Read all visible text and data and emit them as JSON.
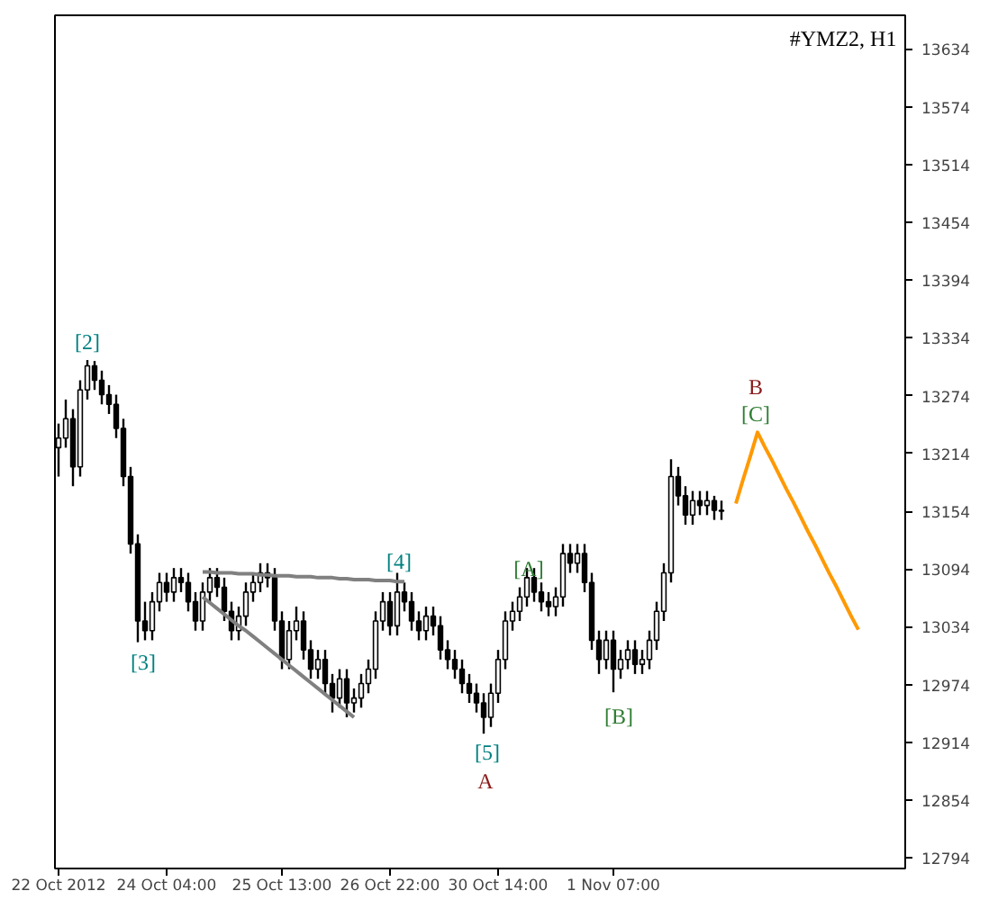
{
  "chart_data": {
    "type": "candlestick",
    "title": "#YMZ2, H1",
    "categories": [
      "22 Oct 2012",
      null,
      null,
      null,
      null,
      null,
      null,
      null,
      null,
      null,
      null,
      null,
      null,
      null,
      null,
      "24 Oct 04:00",
      null,
      null,
      null,
      null,
      null,
      null,
      null,
      null,
      null,
      null,
      null,
      null,
      null,
      null,
      null,
      "25 Oct 13:00",
      null,
      null,
      null,
      null,
      null,
      null,
      null,
      null,
      null,
      null,
      null,
      null,
      null,
      null,
      "26 Oct 22:00",
      null,
      null,
      null,
      null,
      null,
      null,
      null,
      null,
      null,
      null,
      null,
      null,
      null,
      null,
      "30 Oct 14:00",
      null,
      null,
      null,
      null,
      null,
      null,
      null,
      null,
      null,
      null,
      null,
      null,
      null,
      null,
      null,
      "1 Nov 07:00",
      null,
      null,
      null,
      null,
      null,
      null,
      null,
      null,
      null,
      null,
      null,
      null,
      null,
      null,
      null,
      null,
      null,
      null,
      null,
      null,
      null,
      null,
      null,
      null,
      null,
      null,
      null,
      null,
      null,
      null,
      null,
      null,
      null,
      null,
      null,
      null,
      null,
      null,
      null,
      null
    ],
    "ylim": [
      12783,
      13669
    ],
    "yticks": [
      12794,
      12854,
      12914,
      12974,
      13034,
      13094,
      13154,
      13214,
      13274,
      13334,
      13394,
      13454,
      13514,
      13574,
      13634
    ],
    "series": [
      {
        "color": "#000000",
        "ohlc": [
          [
            13220,
            13245,
            13190,
            13230
          ],
          [
            13230,
            13270,
            13220,
            13250
          ],
          [
            13250,
            13260,
            13180,
            13200
          ],
          [
            13200,
            13290,
            13190,
            13280
          ],
          [
            13280,
            13311,
            13270,
            13305
          ],
          [
            13305,
            13310,
            13280,
            13290
          ],
          [
            13290,
            13300,
            13265,
            13275
          ],
          [
            13275,
            13285,
            13255,
            13265
          ],
          [
            13265,
            13275,
            13230,
            13240
          ],
          [
            13240,
            13250,
            13180,
            13190
          ],
          [
            13190,
            13200,
            13110,
            13120
          ],
          [
            13120,
            13130,
            13018,
            13040
          ],
          [
            13040,
            13060,
            13020,
            13030
          ],
          [
            13030,
            13070,
            13020,
            13060
          ],
          [
            13060,
            13090,
            13050,
            13080
          ],
          [
            13080,
            13090,
            13060,
            13070
          ],
          [
            13070,
            13095,
            13060,
            13085
          ],
          [
            13085,
            13095,
            13070,
            13080
          ],
          [
            13080,
            13090,
            13050,
            13060
          ],
          [
            13060,
            13070,
            13030,
            13040
          ],
          [
            13040,
            13080,
            13030,
            13070
          ],
          [
            13070,
            13095,
            13060,
            13085
          ],
          [
            13085,
            13095,
            13065,
            13075
          ],
          [
            13075,
            13085,
            13040,
            13050
          ],
          [
            13050,
            13060,
            13020,
            13030
          ],
          [
            13030,
            13055,
            13020,
            13045
          ],
          [
            13045,
            13080,
            13035,
            13070
          ],
          [
            13070,
            13090,
            13060,
            13080
          ],
          [
            13080,
            13100,
            13070,
            13090
          ],
          [
            13090,
            13100,
            13075,
            13085
          ],
          [
            13085,
            13095,
            13030,
            13040
          ],
          [
            13040,
            13050,
            12990,
            13000
          ],
          [
            13000,
            13040,
            12990,
            13030
          ],
          [
            13030,
            13055,
            13020,
            13040
          ],
          [
            13040,
            13050,
            13000,
            13010
          ],
          [
            13010,
            13020,
            12980,
            12990
          ],
          [
            12990,
            13010,
            12980,
            13000
          ],
          [
            13000,
            13010,
            12965,
            12975
          ],
          [
            12975,
            12985,
            12945,
            12960
          ],
          [
            12960,
            12990,
            12950,
            12980
          ],
          [
            12980,
            12990,
            12940,
            12955
          ],
          [
            12955,
            12970,
            12945,
            12960
          ],
          [
            12960,
            12985,
            12950,
            12975
          ],
          [
            12975,
            13000,
            12965,
            12990
          ],
          [
            12990,
            13050,
            12980,
            13040
          ],
          [
            13040,
            13070,
            13030,
            13060
          ],
          [
            13060,
            13070,
            13025,
            13035
          ],
          [
            13035,
            13090,
            13025,
            13070
          ],
          [
            13070,
            13080,
            13050,
            13060
          ],
          [
            13060,
            13070,
            13030,
            13040
          ],
          [
            13040,
            13050,
            13020,
            13030
          ],
          [
            13030,
            13055,
            13020,
            13045
          ],
          [
            13045,
            13055,
            13025,
            13035
          ],
          [
            13035,
            13045,
            13000,
            13010
          ],
          [
            13010,
            13020,
            12990,
            13000
          ],
          [
            13000,
            13010,
            12980,
            12990
          ],
          [
            12990,
            13000,
            12965,
            12975
          ],
          [
            12975,
            12985,
            12955,
            12965
          ],
          [
            12965,
            12975,
            12945,
            12955
          ],
          [
            12955,
            12965,
            12923,
            12940
          ],
          [
            12940,
            12975,
            12930,
            12965
          ],
          [
            12965,
            13010,
            12955,
            13000
          ],
          [
            13000,
            13050,
            12990,
            13040
          ],
          [
            13040,
            13060,
            13030,
            13050
          ],
          [
            13050,
            13075,
            13040,
            13065
          ],
          [
            13065,
            13095,
            13055,
            13085
          ],
          [
            13085,
            13095,
            13060,
            13070
          ],
          [
            13070,
            13080,
            13050,
            13060
          ],
          [
            13060,
            13070,
            13045,
            13055
          ],
          [
            13055,
            13075,
            13045,
            13065
          ],
          [
            13065,
            13120,
            13055,
            13110
          ],
          [
            13110,
            13120,
            13090,
            13100
          ],
          [
            13100,
            13120,
            13090,
            13110
          ],
          [
            13110,
            13120,
            13070,
            13080
          ],
          [
            13080,
            13090,
            13010,
            13020
          ],
          [
            13020,
            13030,
            12985,
            13000
          ],
          [
            13000,
            13030,
            12990,
            13020
          ],
          [
            13020,
            13030,
            12966,
            12990
          ],
          [
            12990,
            13010,
            12980,
            13000
          ],
          [
            13000,
            13020,
            12990,
            13010
          ],
          [
            13010,
            13020,
            12985,
            12995
          ],
          [
            12995,
            13010,
            12985,
            13000
          ],
          [
            13000,
            13030,
            12990,
            13020
          ],
          [
            13020,
            13060,
            13010,
            13050
          ],
          [
            13050,
            13100,
            13040,
            13090
          ],
          [
            13090,
            13208,
            13080,
            13190
          ],
          [
            13190,
            13200,
            13160,
            13170
          ],
          [
            13170,
            13180,
            13140,
            13150
          ],
          [
            13150,
            13175,
            13140,
            13165
          ],
          [
            13165,
            13175,
            13150,
            13160
          ],
          [
            13160,
            13175,
            13150,
            13165
          ],
          [
            13165,
            13170,
            13145,
            13155
          ],
          [
            13155,
            13165,
            13145,
            13154
          ],
          null,
          null,
          null,
          null,
          null,
          null,
          null,
          null,
          null,
          null,
          null,
          null,
          null,
          null,
          null,
          null,
          null,
          null,
          null,
          null,
          null,
          null,
          null,
          null,
          null
        ]
      },
      {
        "type": "line",
        "color": "#808080",
        "values": [
          null,
          null,
          null,
          null,
          null,
          null,
          null,
          null,
          null,
          null,
          null,
          null,
          null,
          null,
          null,
          null,
          null,
          null,
          null,
          null,
          13091,
          13091,
          13090,
          13090,
          13090,
          13089,
          13089,
          13089,
          13088,
          13088,
          13087,
          13087,
          13087,
          13086,
          13086,
          13086,
          13085,
          13085,
          13085,
          13084,
          13084,
          13083,
          13083,
          13083,
          13082,
          13082,
          13082,
          13081,
          13081,
          null,
          null,
          null,
          null,
          null,
          null,
          null,
          null,
          null,
          null,
          null,
          null,
          null,
          null,
          null,
          null,
          null,
          null,
          null,
          null,
          null,
          null,
          null,
          null,
          null,
          null,
          null,
          null,
          null,
          null,
          null,
          null,
          null,
          null,
          null,
          null,
          null,
          null,
          null,
          null,
          null,
          null,
          null,
          null,
          null,
          null,
          null,
          null,
          null,
          null,
          null,
          null,
          null,
          null,
          null,
          null,
          null,
          null,
          null,
          null,
          null,
          null,
          null,
          null,
          null,
          null,
          null,
          null,
          null
        ]
      },
      {
        "type": "line",
        "color": "#808080",
        "values": [
          null,
          null,
          null,
          null,
          null,
          null,
          null,
          null,
          null,
          null,
          null,
          null,
          null,
          null,
          null,
          null,
          null,
          null,
          null,
          null,
          13065,
          13059,
          13053,
          13047,
          13041,
          13035,
          13030,
          13024,
          13018,
          13012,
          13006,
          13000,
          12994,
          12988,
          12982,
          12976,
          12970,
          12964,
          12958,
          12952,
          12946,
          12940,
          null,
          null,
          null,
          null,
          null,
          null,
          null,
          null,
          null,
          null,
          null,
          null,
          null,
          null,
          null,
          null,
          null,
          null,
          null,
          null,
          null,
          null,
          null,
          null,
          null,
          null,
          null,
          null,
          null,
          null,
          null,
          null,
          null,
          null,
          null,
          null,
          null,
          null,
          null,
          null,
          null,
          null,
          null,
          null,
          null,
          null,
          null,
          null,
          null,
          null,
          null,
          null,
          null,
          null,
          null,
          null,
          null,
          null,
          null,
          null,
          null,
          null,
          null,
          null,
          null,
          null,
          null,
          null,
          null,
          null,
          null,
          null,
          null,
          null,
          null,
          null
        ]
      },
      {
        "type": "line",
        "color": "#ff9900",
        "values": [
          null,
          null,
          null,
          null,
          null,
          null,
          null,
          null,
          null,
          null,
          null,
          null,
          null,
          null,
          null,
          null,
          null,
          null,
          null,
          null,
          null,
          null,
          null,
          null,
          null,
          null,
          null,
          null,
          null,
          null,
          null,
          null,
          null,
          null,
          null,
          null,
          null,
          null,
          null,
          null,
          null,
          null,
          null,
          null,
          null,
          null,
          null,
          null,
          null,
          null,
          null,
          null,
          null,
          null,
          null,
          null,
          null,
          null,
          null,
          null,
          null,
          null,
          null,
          null,
          null,
          null,
          null,
          null,
          null,
          null,
          null,
          null,
          null,
          null,
          null,
          null,
          null,
          null,
          null,
          null,
          null,
          null,
          null,
          null,
          null,
          null,
          null,
          null,
          null,
          null,
          null,
          null,
          null,
          null,
          13162,
          13187,
          13211,
          13236,
          13221,
          13207,
          13192,
          13177,
          13163,
          13148,
          13133,
          13119,
          13104,
          13089,
          13075,
          13060,
          13045,
          13031,
          null,
          null,
          null,
          null,
          null,
          null
        ]
      }
    ],
    "annotations": [
      "[2]",
      {
        "text": "[3]",
        "y": 13018
      },
      "[4]",
      "[5]",
      "A",
      "[A]",
      "[B]",
      "B",
      "[C]"
    ]
  }
}
